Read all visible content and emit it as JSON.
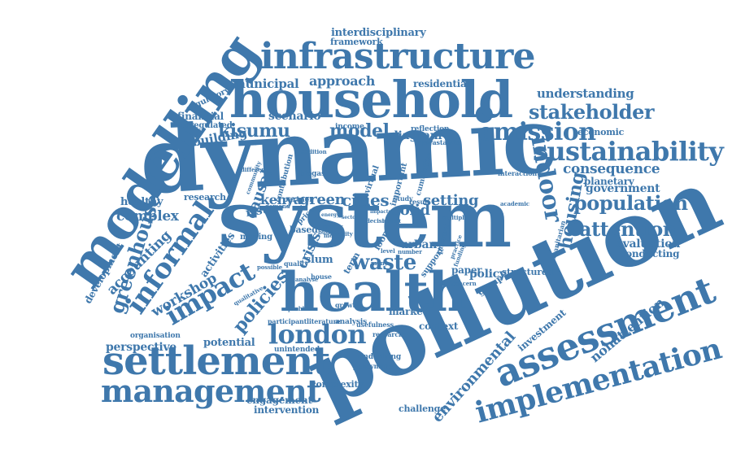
{
  "word_cloud": {
    "color": "#3f78ac",
    "background": "#ffffff",
    "words": {
      "dynamic": "dynamic",
      "system": "system",
      "pollution": "pollution",
      "household": "household",
      "modelling": "modelling",
      "health": "health",
      "infrastructure": "infrastructure",
      "settlement": "settlement",
      "assessment": "assessment",
      "management": "management",
      "implementation": "implementation",
      "sustainability": "sustainability",
      "london": "london",
      "informal": "informal",
      "impact": "impact",
      "emission": "emission",
      "greenhouse": "greenhouse",
      "indoor": "indoor",
      "housing": "housing",
      "population": "population",
      "attention": "attention",
      "stakeholder": "stakeholder",
      "environmental": "environmental",
      "waste": "waste",
      "policies": "policies",
      "kisumu": "kisumu",
      "model": "model",
      "mode": "mode",
      "approach": "approach",
      "municipal": "municipal",
      "understanding": "understanding",
      "consequence": "consequence",
      "complex": "complex",
      "workshop": "workshop",
      "accounting": "accounting",
      "kenya": "kenya",
      "green": "green",
      "cities": "cities",
      "solid": "solid",
      "setting": "setting",
      "nonattention": "nonattention",
      "government": "government",
      "evaluation": "evaluation",
      "conducting": "conducting",
      "building": "building",
      "scenario": "scenario",
      "diagram": "diagram",
      "causal": "causal",
      "crisis": "crisis",
      "perspective": "perspective",
      "potential": "potential",
      "complexity": "complexity",
      "engagement": "engagement",
      "intervention": "intervention",
      "challenge": "challenge",
      "interdisciplinary": "interdisciplinary",
      "framework": "framework",
      "residential": "residential",
      "healthy": "healthy",
      "research": "research",
      "financial": "financial",
      "regulatory": "regulatory",
      "unregulated": "unregulated",
      "activities": "activities",
      "development": "development",
      "planetary": "planetary",
      "economic": "economic",
      "investment": "investment",
      "context": "context",
      "market": "market",
      "urban": "urban",
      "policy": "policy",
      "structured": "structured",
      "paper": "paper",
      "group": "group",
      "support": "support",
      "issue": "issue",
      "based": "based",
      "moving": "moving",
      "organisation": "organisation",
      "unintended": "unintended",
      "underlying": "underlying",
      "policymaker": "policymaker",
      "researcher": "researcher",
      "usefulness": "usefulness",
      "analysis": "analysis",
      "literature": "literature",
      "participant": "participant",
      "growth": "growth",
      "income": "income",
      "reflection": "reflection",
      "parastatals": "parastatals",
      "interaction": "interaction",
      "humanitarian": "humanitarian",
      "academic": "academic",
      "slum": "slum",
      "quality": "quality",
      "house": "house",
      "term": "term",
      "important": "important",
      "virtual": "virtual",
      "cumulative": "cumulative",
      "contribution": "contribution",
      "biogas": "biogas",
      "partner": "partner",
      "demand": "demand",
      "community": "community",
      "different": "different",
      "qualitative": "qualitative",
      "possible": "possible",
      "problem": "problem",
      "addition": "addition",
      "study": "study",
      "result": "result",
      "multiple": "multiple",
      "loop": "loop",
      "price": "price",
      "present": "present",
      "more": "more",
      "city": "city",
      "number": "number",
      "concern": "concern",
      "many": "many",
      "level": "level",
      "maker": "maker",
      "budget": "budget",
      "local": "local",
      "analyse": "analyse",
      "practice": "practice",
      "funding": "funding",
      "decision": "decision",
      "sector": "sector",
      "energy": "energy",
      "impacts": "impacts",
      "benefit": "benefit"
    }
  }
}
